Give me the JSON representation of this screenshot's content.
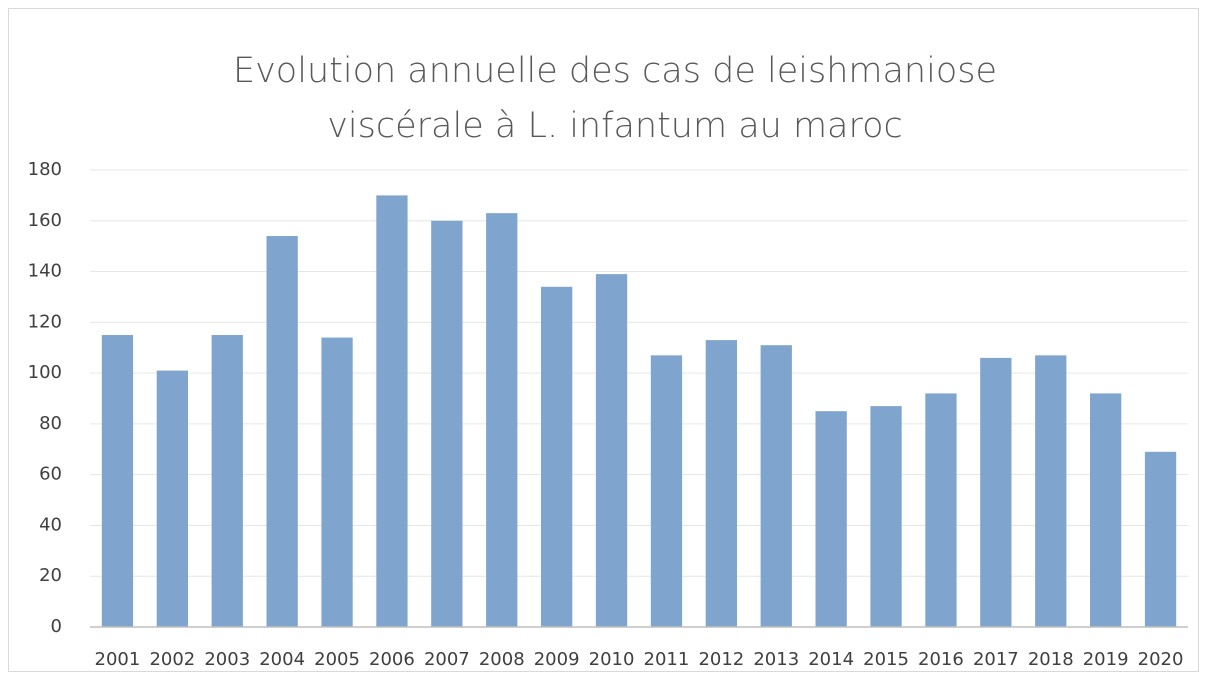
{
  "chart_data": {
    "type": "bar",
    "title": [
      "Evolution annuelle des cas de leishmaniose",
      "viscérale à L. infantum au maroc"
    ],
    "categories": [
      "2001",
      "2002",
      "2003",
      "2004",
      "2005",
      "2006",
      "2007",
      "2008",
      "2009",
      "2010",
      "2011",
      "2012",
      "2013",
      "2014",
      "2015",
      "2016",
      "2017",
      "2018",
      "2019",
      "2020"
    ],
    "values": [
      115,
      101,
      115,
      154,
      114,
      170,
      160,
      163,
      134,
      139,
      107,
      113,
      111,
      85,
      87,
      92,
      106,
      107,
      92,
      69
    ],
    "color": "#7fa5cf",
    "ylim": [
      0,
      180
    ],
    "yticks": [
      0,
      20,
      40,
      60,
      80,
      100,
      120,
      140,
      160,
      180
    ],
    "grid": true
  }
}
